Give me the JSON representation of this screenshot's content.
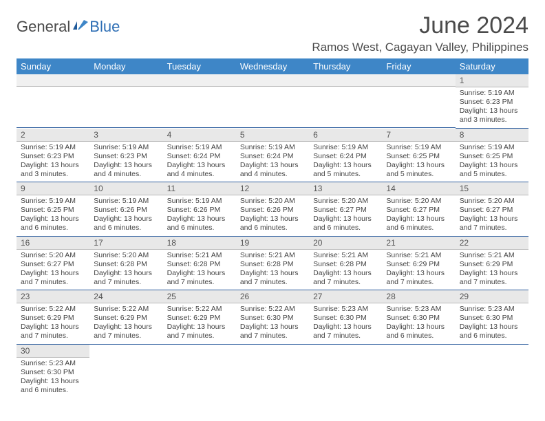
{
  "logo": {
    "part1": "General",
    "part2": "Blue"
  },
  "header": {
    "month": "June 2024",
    "location": "Ramos West, Cagayan Valley, Philippines"
  },
  "colors": {
    "th_bg": "#3e86c7",
    "th_fg": "#ffffff",
    "daybar_bg": "#e8e8e8",
    "daybar_border": "#b8b8b8",
    "row_divider": "#2f5f9f",
    "text": "#444444",
    "title": "#4a4a4a",
    "logo_dark": "#4a4a4a",
    "logo_blue": "#2f6fb5"
  },
  "day_labels": [
    "Sunday",
    "Monday",
    "Tuesday",
    "Wednesday",
    "Thursday",
    "Friday",
    "Saturday"
  ],
  "weeks": [
    [
      null,
      null,
      null,
      null,
      null,
      null,
      {
        "n": "1",
        "sr": "5:19 AM",
        "ss": "6:23 PM",
        "dl": "13 hours and 3 minutes."
      }
    ],
    [
      {
        "n": "2",
        "sr": "5:19 AM",
        "ss": "6:23 PM",
        "dl": "13 hours and 3 minutes."
      },
      {
        "n": "3",
        "sr": "5:19 AM",
        "ss": "6:23 PM",
        "dl": "13 hours and 4 minutes."
      },
      {
        "n": "4",
        "sr": "5:19 AM",
        "ss": "6:24 PM",
        "dl": "13 hours and 4 minutes."
      },
      {
        "n": "5",
        "sr": "5:19 AM",
        "ss": "6:24 PM",
        "dl": "13 hours and 4 minutes."
      },
      {
        "n": "6",
        "sr": "5:19 AM",
        "ss": "6:24 PM",
        "dl": "13 hours and 5 minutes."
      },
      {
        "n": "7",
        "sr": "5:19 AM",
        "ss": "6:25 PM",
        "dl": "13 hours and 5 minutes."
      },
      {
        "n": "8",
        "sr": "5:19 AM",
        "ss": "6:25 PM",
        "dl": "13 hours and 5 minutes."
      }
    ],
    [
      {
        "n": "9",
        "sr": "5:19 AM",
        "ss": "6:25 PM",
        "dl": "13 hours and 6 minutes."
      },
      {
        "n": "10",
        "sr": "5:19 AM",
        "ss": "6:26 PM",
        "dl": "13 hours and 6 minutes."
      },
      {
        "n": "11",
        "sr": "5:19 AM",
        "ss": "6:26 PM",
        "dl": "13 hours and 6 minutes."
      },
      {
        "n": "12",
        "sr": "5:20 AM",
        "ss": "6:26 PM",
        "dl": "13 hours and 6 minutes."
      },
      {
        "n": "13",
        "sr": "5:20 AM",
        "ss": "6:27 PM",
        "dl": "13 hours and 6 minutes."
      },
      {
        "n": "14",
        "sr": "5:20 AM",
        "ss": "6:27 PM",
        "dl": "13 hours and 6 minutes."
      },
      {
        "n": "15",
        "sr": "5:20 AM",
        "ss": "6:27 PM",
        "dl": "13 hours and 7 minutes."
      }
    ],
    [
      {
        "n": "16",
        "sr": "5:20 AM",
        "ss": "6:27 PM",
        "dl": "13 hours and 7 minutes."
      },
      {
        "n": "17",
        "sr": "5:20 AM",
        "ss": "6:28 PM",
        "dl": "13 hours and 7 minutes."
      },
      {
        "n": "18",
        "sr": "5:21 AM",
        "ss": "6:28 PM",
        "dl": "13 hours and 7 minutes."
      },
      {
        "n": "19",
        "sr": "5:21 AM",
        "ss": "6:28 PM",
        "dl": "13 hours and 7 minutes."
      },
      {
        "n": "20",
        "sr": "5:21 AM",
        "ss": "6:28 PM",
        "dl": "13 hours and 7 minutes."
      },
      {
        "n": "21",
        "sr": "5:21 AM",
        "ss": "6:29 PM",
        "dl": "13 hours and 7 minutes."
      },
      {
        "n": "22",
        "sr": "5:21 AM",
        "ss": "6:29 PM",
        "dl": "13 hours and 7 minutes."
      }
    ],
    [
      {
        "n": "23",
        "sr": "5:22 AM",
        "ss": "6:29 PM",
        "dl": "13 hours and 7 minutes."
      },
      {
        "n": "24",
        "sr": "5:22 AM",
        "ss": "6:29 PM",
        "dl": "13 hours and 7 minutes."
      },
      {
        "n": "25",
        "sr": "5:22 AM",
        "ss": "6:29 PM",
        "dl": "13 hours and 7 minutes."
      },
      {
        "n": "26",
        "sr": "5:22 AM",
        "ss": "6:30 PM",
        "dl": "13 hours and 7 minutes."
      },
      {
        "n": "27",
        "sr": "5:23 AM",
        "ss": "6:30 PM",
        "dl": "13 hours and 7 minutes."
      },
      {
        "n": "28",
        "sr": "5:23 AM",
        "ss": "6:30 PM",
        "dl": "13 hours and 6 minutes."
      },
      {
        "n": "29",
        "sr": "5:23 AM",
        "ss": "6:30 PM",
        "dl": "13 hours and 6 minutes."
      }
    ],
    [
      {
        "n": "30",
        "sr": "5:23 AM",
        "ss": "6:30 PM",
        "dl": "13 hours and 6 minutes."
      },
      null,
      null,
      null,
      null,
      null,
      null
    ]
  ],
  "labels": {
    "sunrise": "Sunrise: ",
    "sunset": "Sunset: ",
    "daylight": "Daylight: "
  }
}
